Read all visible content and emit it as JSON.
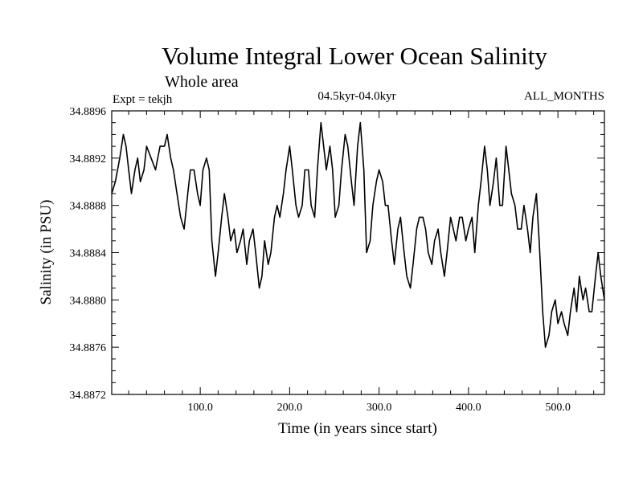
{
  "chart_data": {
    "type": "line",
    "title": "Volume Integral Lower Ocean Salinity",
    "subtitle": "Whole area",
    "experiment": "Expt = tekjh",
    "period": "04.5kyr-04.0kyr",
    "months": "ALL_MONTHS",
    "xlabel": "Time (in years since start)",
    "ylabel": "Salinity (in PSU)",
    "xlim": [
      1,
      552
    ],
    "ylim": [
      34.8872,
      34.8896
    ],
    "x_ticks": [
      100,
      200,
      300,
      400,
      500
    ],
    "x_tick_labels": [
      "100.0",
      "200.0",
      "300.0",
      "400.0",
      "500.0"
    ],
    "y_ticks": [
      34.8872,
      34.8876,
      34.888,
      34.8884,
      34.8888,
      34.8892,
      34.8896
    ],
    "y_tick_labels": [
      "34.8872",
      "34.8876",
      "34.8880",
      "34.8884",
      "34.8888",
      "34.8892",
      "34.8896"
    ],
    "series": [
      {
        "name": "salinity",
        "x": [
          1,
          5,
          10,
          14,
          17,
          20,
          23,
          27,
          30,
          33,
          37,
          40,
          45,
          50,
          55,
          60,
          63,
          67,
          70,
          74,
          78,
          82,
          86,
          89,
          93,
          97,
          100,
          103,
          107,
          110,
          113,
          117,
          120,
          124,
          127,
          131,
          134,
          138,
          141,
          145,
          148,
          152,
          155,
          159,
          162,
          166,
          169,
          172,
          176,
          179,
          183,
          186,
          189,
          193,
          196,
          200,
          203,
          207,
          210,
          214,
          217,
          221,
          224,
          228,
          231,
          235,
          238,
          241,
          245,
          248,
          251,
          255,
          258,
          262,
          265,
          269,
          272,
          276,
          279,
          283,
          286,
          290,
          293,
          297,
          300,
          304,
          307,
          310,
          314,
          317,
          321,
          324,
          328,
          331,
          335,
          338,
          342,
          345,
          349,
          352,
          355,
          359,
          362,
          366,
          369,
          373,
          376,
          380,
          383,
          386,
          390,
          393,
          397,
          400,
          404,
          407,
          411,
          414,
          418,
          421,
          424,
          428,
          431,
          435,
          438,
          442,
          445,
          448,
          452,
          455,
          459,
          462,
          466,
          469,
          472,
          476,
          479,
          483,
          486,
          490,
          493,
          497,
          500,
          504,
          507,
          511,
          514,
          518,
          521,
          524,
          528,
          531,
          535,
          538,
          542,
          545,
          548,
          552
        ],
        "y": [
          34.8889,
          34.889,
          34.8892,
          34.8894,
          34.8893,
          34.8891,
          34.8889,
          34.8891,
          34.8892,
          34.889,
          34.8891,
          34.8893,
          34.8892,
          34.8891,
          34.8893,
          34.8893,
          34.8894,
          34.8892,
          34.8891,
          34.8889,
          34.8887,
          34.8886,
          34.8889,
          34.8891,
          34.8891,
          34.8889,
          34.8888,
          34.8891,
          34.8892,
          34.8891,
          34.8885,
          34.8882,
          34.8884,
          34.8887,
          34.8889,
          34.8887,
          34.8885,
          34.8886,
          34.8884,
          34.8885,
          34.8886,
          34.8883,
          34.8885,
          34.8886,
          34.8884,
          34.8881,
          34.8882,
          34.8885,
          34.8883,
          34.8884,
          34.8887,
          34.8888,
          34.8887,
          34.8889,
          34.8891,
          34.8893,
          34.8891,
          34.8888,
          34.8887,
          34.8888,
          34.8891,
          34.8891,
          34.8888,
          34.8887,
          34.8891,
          34.8895,
          34.8893,
          34.8891,
          34.8893,
          34.8891,
          34.8887,
          34.8888,
          34.8891,
          34.8894,
          34.8893,
          34.889,
          34.8888,
          34.8893,
          34.8895,
          34.8891,
          34.8884,
          34.8885,
          34.8888,
          34.889,
          34.8891,
          34.889,
          34.8888,
          34.8888,
          34.8885,
          34.8883,
          34.8886,
          34.8887,
          34.8884,
          34.8882,
          34.8881,
          34.8883,
          34.8886,
          34.8887,
          34.8887,
          34.8886,
          34.8884,
          34.8883,
          34.8885,
          34.8886,
          34.8884,
          34.8882,
          34.8884,
          34.8887,
          34.8886,
          34.8885,
          34.8887,
          34.8887,
          34.8885,
          34.8886,
          34.8887,
          34.8884,
          34.8888,
          34.889,
          34.8893,
          34.8891,
          34.8888,
          34.889,
          34.8892,
          34.8888,
          34.8888,
          34.8893,
          34.8891,
          34.8889,
          34.8888,
          34.8886,
          34.8886,
          34.8888,
          34.8886,
          34.8884,
          34.8887,
          34.8889,
          34.8885,
          34.8879,
          34.8876,
          34.8877,
          34.8879,
          34.888,
          34.8878,
          34.8879,
          34.8878,
          34.8877,
          34.8879,
          34.8881,
          34.8879,
          34.8882,
          34.888,
          34.8881,
          34.8879,
          34.8879,
          34.8882,
          34.8884,
          34.8882,
          34.888
        ]
      }
    ]
  }
}
